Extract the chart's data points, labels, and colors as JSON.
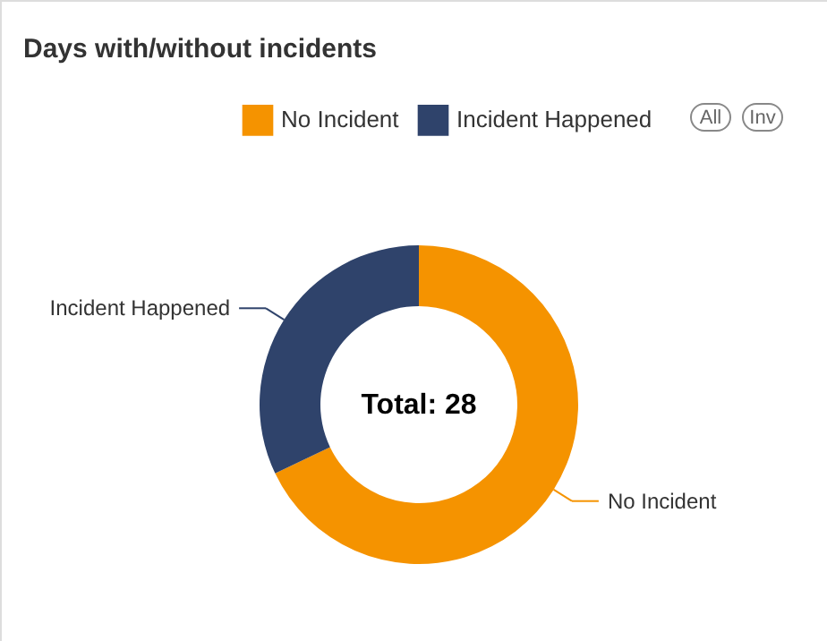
{
  "chart_data": {
    "type": "donut",
    "title": "Days with/without incidents",
    "categories": [
      "No Incident",
      "Incident Happened"
    ],
    "values": [
      67.9,
      32.1
    ],
    "colors": [
      "#f59300",
      "#2f436b"
    ],
    "legend": "top right",
    "annotations": [
      "Total: 28",
      "All",
      "Inv"
    ]
  }
}
